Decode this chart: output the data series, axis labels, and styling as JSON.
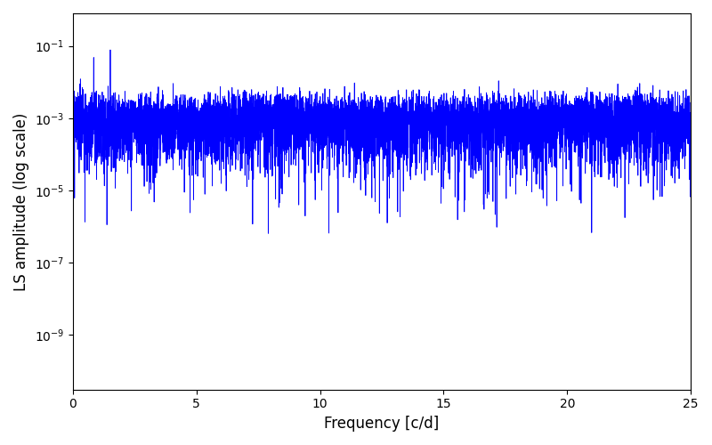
{
  "xlabel": "Frequency [c/d]",
  "ylabel": "LS amplitude (log scale)",
  "xlim": [
    0,
    25
  ],
  "ylim_low": 3e-11,
  "ylim_high": 0.8,
  "line_color": "#0000ff",
  "line_width": 0.6,
  "background_color": "#ffffff",
  "figsize": [
    8.0,
    5.0
  ],
  "dpi": 100,
  "seed": 1234,
  "freq_max": 25.0,
  "obs_days": 500,
  "n_obs": 900,
  "n_freqs": 8000
}
